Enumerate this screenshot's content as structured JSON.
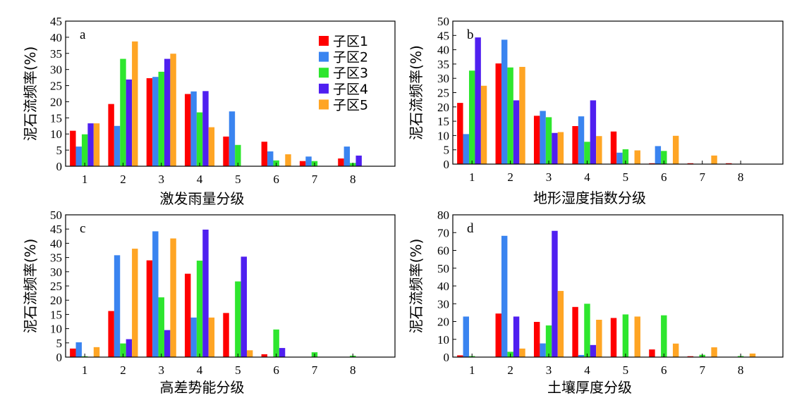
{
  "colors": {
    "series": [
      "#ff0000",
      "#3a84f0",
      "#2ee62e",
      "#4f1ff0",
      "#ffa524"
    ],
    "axis": "#000000"
  },
  "legend_position": "top-right of panel a",
  "chart_data": [
    {
      "type": "bar",
      "panel": "a",
      "xlabel": "激发雨量分级",
      "ylabel": "泥石流频率(%)",
      "categories": [
        "1",
        "2",
        "3",
        "4",
        "5",
        "6",
        "7",
        "8"
      ],
      "ylim": [
        0,
        45
      ],
      "yticks": [
        0,
        5,
        10,
        15,
        20,
        25,
        30,
        35,
        40,
        45
      ],
      "grid": false,
      "series": [
        {
          "name": "子区1",
          "values": [
            11,
            19.3,
            27.3,
            22.4,
            9.2,
            7.6,
            1.6,
            2.4
          ]
        },
        {
          "name": "子区2",
          "values": [
            6.1,
            12.5,
            27.7,
            23.2,
            17,
            4.6,
            3,
            6.1
          ]
        },
        {
          "name": "子区3",
          "values": [
            9.9,
            33.3,
            29.3,
            16.7,
            6.6,
            1.8,
            1.6,
            1
          ]
        },
        {
          "name": "子区4",
          "values": [
            13.3,
            26.9,
            33.3,
            23.3,
            0,
            0,
            0,
            3.3
          ]
        },
        {
          "name": "子区5",
          "values": [
            13.3,
            38.7,
            34.9,
            12.1,
            0,
            3.7,
            0,
            0
          ]
        }
      ]
    },
    {
      "type": "bar",
      "panel": "b",
      "xlabel": "地形湿度指数分级",
      "ylabel": "泥石流频率(%)",
      "categories": [
        "1",
        "2",
        "3",
        "4",
        "5",
        "6",
        "7",
        "8"
      ],
      "ylim": [
        0,
        50
      ],
      "yticks": [
        0,
        5,
        10,
        15,
        20,
        25,
        30,
        35,
        40,
        45,
        50
      ],
      "grid": false,
      "series": [
        {
          "name": "子区1",
          "values": [
            21.4,
            35.2,
            16.9,
            13.3,
            11.4,
            0.3,
            0.3,
            0.3
          ]
        },
        {
          "name": "子区2",
          "values": [
            10.5,
            43.5,
            18.6,
            16.7,
            4,
            6.3,
            0,
            0
          ]
        },
        {
          "name": "子区3",
          "values": [
            32.7,
            33.8,
            16.4,
            7.8,
            5.2,
            4.6,
            0,
            0
          ]
        },
        {
          "name": "子区4",
          "values": [
            44.3,
            22.3,
            10.9,
            22.3,
            0,
            0,
            0,
            0
          ]
        },
        {
          "name": "子区5",
          "values": [
            27.4,
            34,
            11.2,
            9.8,
            4.8,
            9.9,
            3,
            0
          ]
        }
      ]
    },
    {
      "type": "bar",
      "panel": "c",
      "xlabel": "高差势能分级",
      "ylabel": "泥石流频率(%)",
      "categories": [
        "1",
        "2",
        "3",
        "4",
        "5",
        "6",
        "7",
        "8"
      ],
      "ylim": [
        0,
        50
      ],
      "yticks": [
        0,
        5,
        10,
        15,
        20,
        25,
        30,
        35,
        40,
        45,
        50
      ],
      "grid": false,
      "series": [
        {
          "name": "子区1",
          "values": [
            3,
            16.2,
            34,
            29.3,
            15.5,
            1,
            0,
            0
          ]
        },
        {
          "name": "子区2",
          "values": [
            5.2,
            35.8,
            44.2,
            13.9,
            0,
            0,
            0,
            0
          ]
        },
        {
          "name": "子区3",
          "values": [
            0.3,
            4.8,
            21,
            33.9,
            26.6,
            9.7,
            1.7,
            0.5
          ]
        },
        {
          "name": "子区4",
          "values": [
            0,
            6.3,
            9.5,
            44.8,
            35.3,
            3.2,
            0,
            0
          ]
        },
        {
          "name": "子区5",
          "values": [
            3.5,
            38.1,
            41.7,
            13.9,
            2.4,
            0,
            0,
            0
          ]
        }
      ]
    },
    {
      "type": "bar",
      "panel": "d",
      "xlabel": "土壤厚度分级",
      "ylabel": "泥石流频率(%)",
      "categories": [
        "1",
        "2",
        "3",
        "4",
        "5",
        "6",
        "7",
        "8"
      ],
      "ylim": [
        0,
        80
      ],
      "yticks": [
        0,
        10,
        20,
        30,
        40,
        50,
        60,
        70,
        80
      ],
      "grid": false,
      "series": [
        {
          "name": "子区1",
          "values": [
            1,
            24.5,
            19.8,
            28.2,
            22,
            4.3,
            0.5,
            0
          ]
        },
        {
          "name": "子区2",
          "values": [
            22.8,
            68.2,
            7.7,
            1.2,
            0,
            0,
            0,
            0
          ]
        },
        {
          "name": "子区3",
          "values": [
            0.6,
            3,
            17.8,
            30,
            24,
            23.5,
            1.3,
            0.6
          ]
        },
        {
          "name": "子区4",
          "values": [
            0,
            22.8,
            71,
            6.8,
            0,
            0,
            0,
            0
          ]
        },
        {
          "name": "子区5",
          "values": [
            0,
            4.8,
            37.2,
            21,
            22.8,
            7.6,
            5.5,
            2
          ]
        }
      ]
    }
  ]
}
